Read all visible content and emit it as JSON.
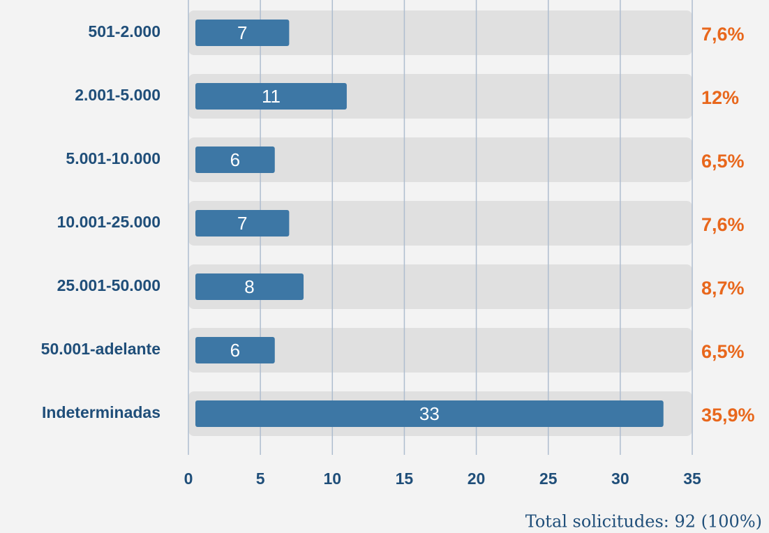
{
  "chart_data": {
    "type": "bar",
    "orientation": "horizontal",
    "categories": [
      "501-2.000",
      "2.001-5.000",
      "5.001-10.000",
      "10.001-25.000",
      "25.001-50.000",
      "50.001-adelante",
      "Indeterminadas"
    ],
    "values": [
      7,
      11,
      6,
      7,
      8,
      6,
      33
    ],
    "percentages": [
      7.6,
      12,
      6.5,
      7.6,
      8.7,
      6.5,
      35.9
    ],
    "percentage_labels": [
      "7,6%",
      "12%",
      "6,5%",
      "7,6%",
      "8,7%",
      "6,5%",
      "35,9%"
    ],
    "color": "#3d77a5",
    "xlim": [
      0,
      35
    ],
    "xticks": [
      0,
      5,
      10,
      15,
      20,
      25,
      30,
      35
    ],
    "grid": true,
    "note": "Total solicitudes: 92 (100%)"
  }
}
